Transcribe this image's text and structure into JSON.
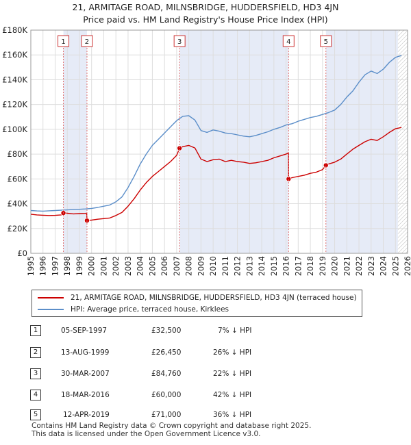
{
  "title_line1": "21, ARMITAGE ROAD, MILNSBRIDGE, HUDDERSFIELD, HD3 4JN",
  "title_line2": "Price paid vs. HM Land Registry's House Price Index (HPI)",
  "chart_data": {
    "type": "line",
    "xlim": [
      1995,
      2026
    ],
    "ylim": [
      0,
      180000
    ],
    "yticks": [
      0,
      20000,
      40000,
      60000,
      80000,
      100000,
      120000,
      140000,
      160000,
      180000
    ],
    "ytick_labels": [
      "£0",
      "£20K",
      "£40K",
      "£60K",
      "£80K",
      "£100K",
      "£120K",
      "£140K",
      "£160K",
      "£180K"
    ],
    "xticks": [
      1995,
      1996,
      1997,
      1998,
      1999,
      2000,
      2001,
      2002,
      2003,
      2004,
      2005,
      2006,
      2007,
      2008,
      2009,
      2010,
      2011,
      2012,
      2013,
      2014,
      2015,
      2016,
      2017,
      2018,
      2019,
      2020,
      2021,
      2022,
      2023,
      2024,
      2025,
      2026
    ],
    "grid": true,
    "hatch_after": 2025.2,
    "series": [
      {
        "name": "21, ARMITAGE ROAD, MILNSBRIDGE, HUDDERSFIELD, HD3 4JN (terraced house)",
        "color": "#cc0000",
        "points": [
          [
            1995.0,
            31500
          ],
          [
            1995.5,
            31000
          ],
          [
            1996.0,
            30700
          ],
          [
            1996.5,
            30500
          ],
          [
            1997.0,
            30600
          ],
          [
            1997.5,
            31000
          ],
          [
            1997.68,
            32500
          ],
          [
            1998.0,
            32300
          ],
          [
            1998.5,
            31800
          ],
          [
            1999.0,
            32000
          ],
          [
            1999.5,
            32200
          ],
          [
            1999.6,
            32300
          ],
          [
            1999.62,
            26450
          ],
          [
            2000.0,
            26800
          ],
          [
            2000.5,
            27500
          ],
          [
            2001.0,
            28000
          ],
          [
            2001.5,
            28500
          ],
          [
            2002.0,
            30500
          ],
          [
            2002.5,
            33000
          ],
          [
            2003.0,
            38000
          ],
          [
            2003.5,
            44000
          ],
          [
            2004.0,
            51000
          ],
          [
            2004.5,
            57000
          ],
          [
            2005.0,
            62000
          ],
          [
            2005.5,
            66000
          ],
          [
            2006.0,
            70000
          ],
          [
            2006.5,
            74000
          ],
          [
            2007.0,
            79000
          ],
          [
            2007.24,
            84760
          ],
          [
            2007.5,
            86000
          ],
          [
            2008.0,
            87000
          ],
          [
            2008.5,
            85000
          ],
          [
            2009.0,
            76000
          ],
          [
            2009.5,
            74000
          ],
          [
            2010.0,
            75500
          ],
          [
            2010.5,
            76000
          ],
          [
            2011.0,
            74000
          ],
          [
            2011.5,
            75000
          ],
          [
            2012.0,
            74000
          ],
          [
            2012.5,
            73500
          ],
          [
            2013.0,
            72500
          ],
          [
            2013.5,
            73000
          ],
          [
            2014.0,
            74000
          ],
          [
            2014.5,
            75000
          ],
          [
            2015.0,
            77000
          ],
          [
            2015.5,
            78500
          ],
          [
            2016.0,
            80000
          ],
          [
            2016.2,
            81000
          ],
          [
            2016.21,
            60000
          ],
          [
            2016.5,
            61000
          ],
          [
            2017.0,
            62000
          ],
          [
            2017.5,
            63000
          ],
          [
            2018.0,
            64500
          ],
          [
            2018.5,
            65500
          ],
          [
            2019.0,
            67500
          ],
          [
            2019.28,
            71000
          ],
          [
            2019.5,
            72000
          ],
          [
            2020.0,
            73500
          ],
          [
            2020.5,
            76000
          ],
          [
            2021.0,
            80000
          ],
          [
            2021.5,
            84000
          ],
          [
            2022.0,
            87000
          ],
          [
            2022.5,
            90000
          ],
          [
            2023.0,
            92000
          ],
          [
            2023.5,
            91000
          ],
          [
            2024.0,
            94000
          ],
          [
            2024.5,
            97500
          ],
          [
            2025.0,
            100500
          ],
          [
            2025.5,
            101500
          ]
        ]
      },
      {
        "name": "HPI: Average price, terraced house, Kirklees",
        "color": "#5b8ec9",
        "points": [
          [
            1995.0,
            34500
          ],
          [
            1995.5,
            34200
          ],
          [
            1996.0,
            34000
          ],
          [
            1996.5,
            34300
          ],
          [
            1997.0,
            34500
          ],
          [
            1997.5,
            34800
          ],
          [
            1998.0,
            35000
          ],
          [
            1998.5,
            35300
          ],
          [
            1999.0,
            35500
          ],
          [
            1999.5,
            35800
          ],
          [
            2000.0,
            36200
          ],
          [
            2000.5,
            37000
          ],
          [
            2001.0,
            38000
          ],
          [
            2001.5,
            39000
          ],
          [
            2002.0,
            41500
          ],
          [
            2002.5,
            45500
          ],
          [
            2003.0,
            53000
          ],
          [
            2003.5,
            62000
          ],
          [
            2004.0,
            72000
          ],
          [
            2004.5,
            80000
          ],
          [
            2005.0,
            87000
          ],
          [
            2005.5,
            92000
          ],
          [
            2006.0,
            97000
          ],
          [
            2006.5,
            102000
          ],
          [
            2007.0,
            107000
          ],
          [
            2007.5,
            110500
          ],
          [
            2008.0,
            111000
          ],
          [
            2008.5,
            107500
          ],
          [
            2009.0,
            99000
          ],
          [
            2009.5,
            97500
          ],
          [
            2010.0,
            99500
          ],
          [
            2010.5,
            98500
          ],
          [
            2011.0,
            97000
          ],
          [
            2011.5,
            96500
          ],
          [
            2012.0,
            95500
          ],
          [
            2012.5,
            94500
          ],
          [
            2013.0,
            94000
          ],
          [
            2013.5,
            95000
          ],
          [
            2014.0,
            96500
          ],
          [
            2014.5,
            98000
          ],
          [
            2015.0,
            100000
          ],
          [
            2015.5,
            101500
          ],
          [
            2016.0,
            103500
          ],
          [
            2016.5,
            104500
          ],
          [
            2017.0,
            106500
          ],
          [
            2017.5,
            108000
          ],
          [
            2018.0,
            109500
          ],
          [
            2018.5,
            110500
          ],
          [
            2019.0,
            112000
          ],
          [
            2019.5,
            113500
          ],
          [
            2020.0,
            115500
          ],
          [
            2020.5,
            120000
          ],
          [
            2021.0,
            126000
          ],
          [
            2021.5,
            131000
          ],
          [
            2022.0,
            138000
          ],
          [
            2022.5,
            144000
          ],
          [
            2023.0,
            147000
          ],
          [
            2023.5,
            145000
          ],
          [
            2024.0,
            148500
          ],
          [
            2024.5,
            154000
          ],
          [
            2025.0,
            158000
          ],
          [
            2025.5,
            159500
          ]
        ]
      }
    ],
    "sales": [
      {
        "label": "1",
        "x": 1997.68,
        "y": 32500
      },
      {
        "label": "2",
        "x": 1999.62,
        "y": 26450
      },
      {
        "label": "3",
        "x": 2007.24,
        "y": 84760
      },
      {
        "label": "4",
        "x": 2016.21,
        "y": 60000
      },
      {
        "label": "5",
        "x": 2019.28,
        "y": 71000
      }
    ]
  },
  "legend": {
    "property": "21, ARMITAGE ROAD, MILNSBRIDGE, HUDDERSFIELD, HD3 4JN (terraced house)",
    "hpi": "HPI: Average price, terraced house, Kirklees"
  },
  "transactions": [
    {
      "num": "1",
      "date": "05-SEP-1997",
      "price": "£32,500",
      "hpi": "7% ↓ HPI"
    },
    {
      "num": "2",
      "date": "13-AUG-1999",
      "price": "£26,450",
      "hpi": "26% ↓ HPI"
    },
    {
      "num": "3",
      "date": "30-MAR-2007",
      "price": "£84,760",
      "hpi": "22% ↓ HPI"
    },
    {
      "num": "4",
      "date": "18-MAR-2016",
      "price": "£60,000",
      "hpi": "42% ↓ HPI"
    },
    {
      "num": "5",
      "date": "12-APR-2019",
      "price": "£71,000",
      "hpi": "36% ↓ HPI"
    }
  ],
  "footer_line1": "Contains HM Land Registry data © Crown copyright and database right 2025.",
  "footer_line2": "This data is licensed under the Open Government Licence v3.0."
}
